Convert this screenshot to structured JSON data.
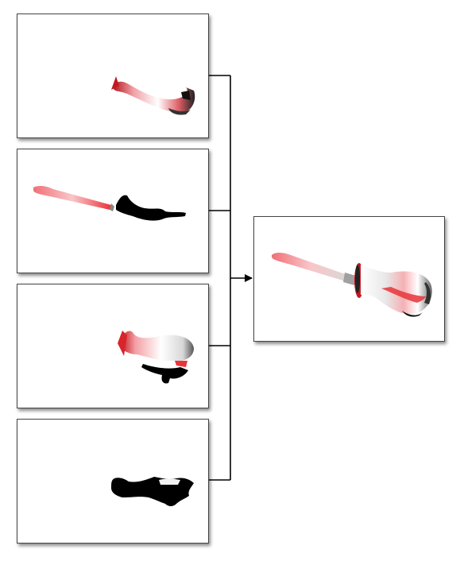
{
  "diagram": {
    "type": "partial-views-merge",
    "colors": {
      "line": "#000000",
      "frame_border": "#444444",
      "surface_red": "#e8343a",
      "surface_white": "#f4f4f4",
      "shadow": "#000000"
    },
    "inputs": [
      {
        "id": "view-1",
        "content": "screwdriver-handle-fragment"
      },
      {
        "id": "view-2",
        "content": "screwdriver-shaft-and-silhouette"
      },
      {
        "id": "view-3",
        "content": "screwdriver-handle-bulb"
      },
      {
        "id": "view-4",
        "content": "black-silhouette-fragment"
      }
    ],
    "output": {
      "id": "merged-view",
      "content": "full-screwdriver"
    },
    "connections": [
      {
        "from": "view-1",
        "to": "merged-view"
      },
      {
        "from": "view-2",
        "to": "merged-view"
      },
      {
        "from": "view-3",
        "to": "merged-view"
      },
      {
        "from": "view-4",
        "to": "merged-view"
      }
    ]
  }
}
